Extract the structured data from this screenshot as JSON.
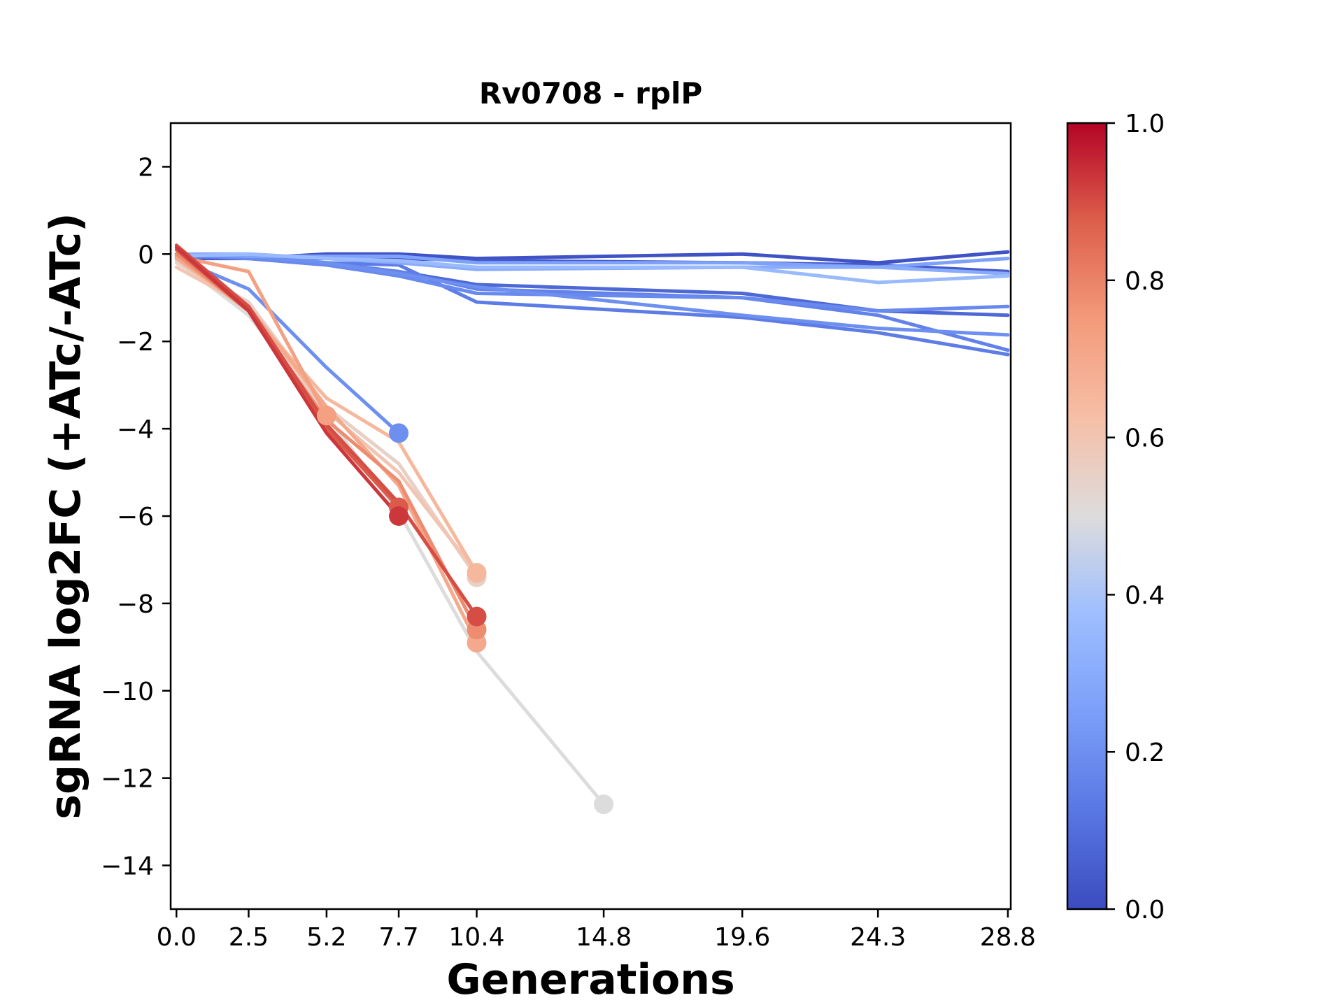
{
  "chart_data": {
    "type": "line",
    "title": "Rv0708 - rplP",
    "xlabel": "Generations",
    "ylabel": "sgRNA log2FC (+ATc/-ATc)",
    "x_ticks": [
      0.0,
      2.5,
      5.2,
      7.7,
      10.4,
      14.8,
      19.6,
      24.3,
      28.8
    ],
    "x_tick_labels": [
      "0.0",
      "2.5",
      "5.2",
      "7.7",
      "10.4",
      "14.8",
      "19.6",
      "24.3",
      "28.8"
    ],
    "xlim": [
      -0.2,
      28.9
    ],
    "y_ticks": [
      2,
      0,
      -2,
      -4,
      -6,
      -8,
      -10,
      -12,
      -14
    ],
    "y_tick_labels": [
      "2",
      "0",
      "−2",
      "−4",
      "−6",
      "−8",
      "−10",
      "−12",
      "−14"
    ],
    "ylim": [
      -15,
      3
    ],
    "colorbar": {
      "ticks": [
        0.0,
        0.2,
        0.4,
        0.6,
        0.8,
        1.0
      ],
      "tick_labels": [
        "0.0",
        "0.2",
        "0.4",
        "0.6",
        "0.8",
        "1.0"
      ],
      "colormap": "coolwarm",
      "range": [
        0.0,
        1.0
      ]
    },
    "series": [
      {
        "color_value": 0.02,
        "x": [
          0.0,
          2.5,
          5.2,
          7.7,
          10.4,
          19.6,
          24.3,
          28.8
        ],
        "y": [
          -0.1,
          -0.1,
          0.0,
          0.0,
          -0.1,
          0.0,
          -0.2,
          0.05
        ],
        "end_marker": false
      },
      {
        "color_value": 0.04,
        "x": [
          0.0,
          2.5,
          5.2,
          7.7,
          10.4,
          19.6,
          24.3,
          28.8
        ],
        "y": [
          -0.05,
          -0.1,
          -0.1,
          -0.1,
          -0.15,
          -0.2,
          -0.25,
          -0.4
        ],
        "end_marker": false
      },
      {
        "color_value": 0.08,
        "x": [
          0.0,
          2.5,
          5.2,
          7.7,
          10.4,
          19.6,
          24.3,
          28.8
        ],
        "y": [
          0.0,
          -0.1,
          -0.25,
          -0.4,
          -0.7,
          -0.9,
          -1.3,
          -1.4
        ],
        "end_marker": false
      },
      {
        "color_value": 0.14,
        "x": [
          0.0,
          2.5,
          5.2,
          7.7,
          10.4,
          19.6,
          24.3,
          28.8
        ],
        "y": [
          -0.05,
          -0.1,
          -0.2,
          -0.25,
          -1.1,
          -1.45,
          -1.8,
          -2.3
        ],
        "end_marker": false
      },
      {
        "color_value": 0.16,
        "x": [
          0.0,
          2.5,
          5.2,
          7.7,
          10.4,
          19.6,
          24.3,
          28.8
        ],
        "y": [
          0.0,
          -0.05,
          -0.2,
          -0.4,
          -0.8,
          -1.0,
          -1.4,
          -2.2
        ],
        "end_marker": false
      },
      {
        "color_value": 0.18,
        "x": [
          0.0,
          2.5,
          5.2,
          7.7,
          10.4,
          19.6,
          24.3,
          28.8
        ],
        "y": [
          0.0,
          -0.1,
          -0.25,
          -0.5,
          -0.9,
          -1.0,
          -1.3,
          -1.2
        ],
        "end_marker": false
      },
      {
        "color_value": 0.2,
        "x": [
          0.0,
          2.5,
          5.2,
          7.7,
          10.4,
          19.6,
          24.3,
          28.8
        ],
        "y": [
          0.0,
          -0.05,
          -0.2,
          -0.45,
          -0.75,
          -1.4,
          -1.7,
          -1.85
        ],
        "end_marker": false
      },
      {
        "color_value": 0.26,
        "x": [
          0.0,
          2.5,
          5.2,
          7.7,
          10.4,
          19.6,
          24.3,
          28.8
        ],
        "y": [
          0.0,
          -0.05,
          -0.05,
          -0.05,
          -0.2,
          -0.2,
          -0.3,
          -0.1
        ],
        "end_marker": false
      },
      {
        "color_value": 0.3,
        "x": [
          0.0,
          2.5,
          5.2,
          7.7,
          10.4,
          19.6,
          24.3,
          28.8
        ],
        "y": [
          0.0,
          0.0,
          -0.1,
          -0.2,
          -0.35,
          -0.3,
          -0.3,
          -0.45
        ],
        "end_marker": false
      },
      {
        "color_value": 0.36,
        "x": [
          0.0,
          2.5,
          5.2,
          7.7,
          10.4,
          19.6,
          24.3,
          28.8
        ],
        "y": [
          -0.05,
          0.0,
          -0.1,
          -0.15,
          -0.3,
          -0.3,
          -0.65,
          -0.5
        ],
        "end_marker": false
      },
      {
        "color_value": 0.2,
        "x": [
          0.0,
          2.5,
          5.2,
          7.7
        ],
        "y": [
          -0.1,
          -0.8,
          -2.6,
          -4.1
        ],
        "end_marker": true
      },
      {
        "color_value": 0.5,
        "x": [
          0.0,
          2.5,
          5.2,
          7.7,
          10.4,
          14.8
        ],
        "y": [
          -0.15,
          -1.4,
          -3.7,
          -5.9,
          -9.1,
          -12.6
        ],
        "end_marker": true
      },
      {
        "color_value": 0.55,
        "x": [
          0.0,
          2.5,
          5.2,
          7.7,
          10.4
        ],
        "y": [
          -0.2,
          -1.1,
          -3.5,
          -4.8,
          -7.4
        ],
        "end_marker": true
      },
      {
        "color_value": 0.6,
        "x": [
          0.0,
          2.5,
          5.2,
          7.7,
          10.4
        ],
        "y": [
          -0.3,
          -1.2,
          -3.6,
          -5.0,
          -7.3
        ],
        "end_marker": true
      },
      {
        "color_value": 0.65,
        "x": [
          0.0,
          2.5,
          5.2,
          7.7,
          10.4
        ],
        "y": [
          -0.1,
          -1.3,
          -3.3,
          -4.3,
          -7.3
        ],
        "end_marker": true
      },
      {
        "color_value": 0.7,
        "x": [
          0.0,
          2.5,
          5.2,
          7.7,
          10.4
        ],
        "y": [
          -0.1,
          -1.2,
          -3.5,
          -5.3,
          -8.9
        ],
        "end_marker": true
      },
      {
        "color_value": 0.73,
        "x": [
          0.0,
          2.5,
          5.2
        ],
        "y": [
          -0.05,
          -0.4,
          -3.7
        ],
        "end_marker": true
      },
      {
        "color_value": 0.78,
        "x": [
          0.0,
          2.5,
          5.2,
          7.7,
          10.4
        ],
        "y": [
          0.0,
          -1.3,
          -3.8,
          -5.2,
          -8.6
        ],
        "end_marker": true
      },
      {
        "color_value": 0.88,
        "x": [
          0.0,
          2.5,
          5.2,
          7.7
        ],
        "y": [
          0.1,
          -1.3,
          -4.0,
          -5.8
        ],
        "end_marker": true
      },
      {
        "color_value": 0.9,
        "x": [
          0.0,
          2.5,
          5.2,
          7.7,
          10.4
        ],
        "y": [
          0.2,
          -1.2,
          -3.9,
          -5.7,
          -8.3
        ],
        "end_marker": true
      },
      {
        "color_value": 0.93,
        "x": [
          0.0,
          2.5,
          5.2,
          7.7
        ],
        "y": [
          0.15,
          -1.3,
          -4.1,
          -6.0
        ],
        "end_marker": true
      }
    ],
    "grid": false,
    "legend": "none"
  }
}
